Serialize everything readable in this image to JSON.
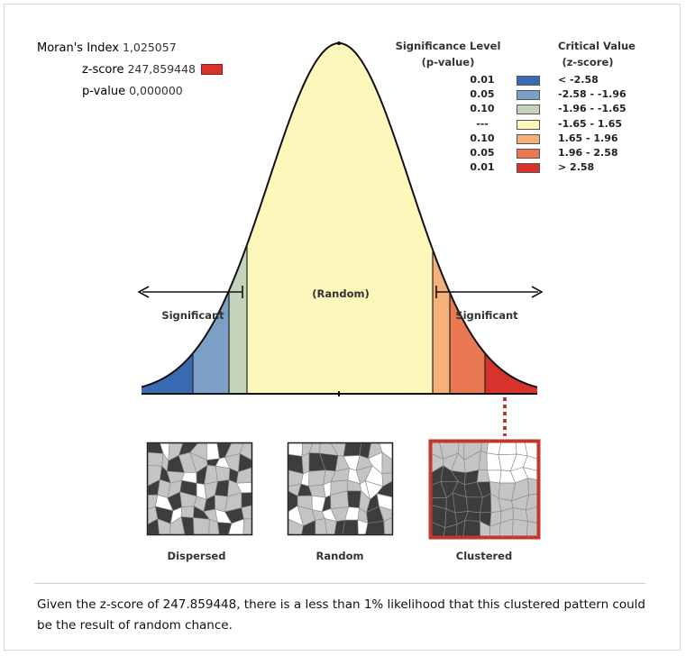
{
  "stats": {
    "morans_index_label": "Moran's Index",
    "morans_index_value": "1,025057",
    "z_score_label": "z-score",
    "z_score_value": "247,859448",
    "p_value_label": "p-value",
    "p_value_value": "0,000000"
  },
  "legend": {
    "significance_header": "Significance Level",
    "significance_sub": "(p-value)",
    "critical_header": "Critical Value",
    "critical_sub": "(z-score)",
    "rows": [
      {
        "p": "0.01",
        "z": "< -2.58",
        "color": "#3a6bb2"
      },
      {
        "p": "0.05",
        "z": "-2.58 - -1.96",
        "color": "#7b9fc6"
      },
      {
        "p": "0.10",
        "z": "-1.96 - -1.65",
        "color": "#c5d3bd"
      },
      {
        "p": "---",
        "z": "-1.65 - 1.65",
        "color": "#fcf7bb"
      },
      {
        "p": "0.10",
        "z": "1.65 - 1.96",
        "color": "#f6b07a"
      },
      {
        "p": "0.05",
        "z": "1.96 - 2.58",
        "color": "#ea7852"
      },
      {
        "p": "0.01",
        "z": "> 2.58",
        "color": "#d7322b"
      }
    ]
  },
  "curve": {
    "center_label": "(Random)",
    "left_label": "Significant",
    "right_label": "Significant"
  },
  "patterns": [
    {
      "label": "Dispersed"
    },
    {
      "label": "Random"
    },
    {
      "label": "Clustered"
    }
  ],
  "highlight_color": "#c0392b",
  "caption": "Given the z-score of 247.859448, there is a less than 1% likelihood that this clustered pattern could be the result of random chance."
}
